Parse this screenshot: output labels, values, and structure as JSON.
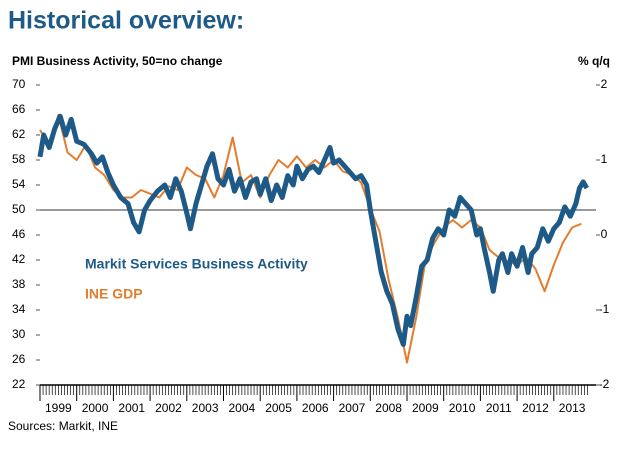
{
  "chart_data": {
    "type": "line",
    "title": "Historical overview:",
    "y_label": "PMI Business Activity, 50=no change",
    "y2_label": "% q/q",
    "source": "Sources: Markit, INE",
    "xlim": [
      1999,
      2014.15
    ],
    "xticks": [
      1999,
      2000,
      2001,
      2002,
      2003,
      2004,
      2005,
      2006,
      2007,
      2008,
      2009,
      2010,
      2011,
      2012,
      2013
    ],
    "ylim": [
      22,
      70
    ],
    "yticks": [
      22,
      26,
      30,
      34,
      38,
      42,
      46,
      50,
      54,
      58,
      62,
      66,
      70
    ],
    "y2lim": [
      -2,
      2
    ],
    "y2ticks": [
      -2,
      -1,
      0,
      1,
      2
    ],
    "reference_line": 50,
    "legend": "center-left",
    "series": [
      {
        "name": "Markit Services Business Activity",
        "color": "#1d5a87",
        "width": 5,
        "x": [
          1999.0,
          1999.1,
          1999.25,
          1999.4,
          1999.55,
          1999.7,
          1999.85,
          2000.0,
          2000.2,
          2000.4,
          2000.55,
          2000.7,
          2000.85,
          2001.0,
          2001.2,
          2001.4,
          2001.55,
          2001.7,
          2001.85,
          2002.0,
          2002.2,
          2002.4,
          2002.55,
          2002.7,
          2002.85,
          2003.0,
          2003.1,
          2003.25,
          2003.4,
          2003.55,
          2003.7,
          2003.85,
          2004.0,
          2004.15,
          2004.3,
          2004.45,
          2004.6,
          2004.75,
          2004.9,
          2005.0,
          2005.15,
          2005.3,
          2005.45,
          2005.6,
          2005.75,
          2005.9,
          2006.0,
          2006.15,
          2006.3,
          2006.45,
          2006.6,
          2006.75,
          2006.9,
          2007.0,
          2007.15,
          2007.3,
          2007.45,
          2007.6,
          2007.75,
          2007.9,
          2008.0,
          2008.15,
          2008.3,
          2008.45,
          2008.6,
          2008.75,
          2008.9,
          2009.0,
          2009.1,
          2009.25,
          2009.4,
          2009.55,
          2009.7,
          2009.85,
          2010.0,
          2010.15,
          2010.3,
          2010.45,
          2010.6,
          2010.75,
          2010.9,
          2011.0,
          2011.1,
          2011.25,
          2011.35,
          2011.5,
          2011.6,
          2011.75,
          2011.85,
          2012.0,
          2012.15,
          2012.3,
          2012.4,
          2012.55,
          2012.7,
          2012.85,
          2013.0,
          2013.15,
          2013.3,
          2013.45,
          2013.6,
          2013.7,
          2013.8,
          2013.9
        ],
        "values": [
          58.5,
          62,
          60,
          63,
          65,
          62,
          64.5,
          61,
          60.5,
          59,
          57.5,
          58.5,
          56,
          54,
          52,
          51,
          48,
          46.5,
          50,
          51.5,
          53,
          54,
          52,
          55,
          53,
          49.5,
          47,
          51,
          54,
          57,
          59,
          55,
          54,
          56.5,
          53,
          55,
          52,
          54.5,
          55,
          52.5,
          55,
          51.5,
          54,
          52,
          55.5,
          54,
          57,
          55,
          56.5,
          57,
          56,
          58,
          60,
          57.5,
          58,
          57,
          56,
          55,
          55.5,
          54,
          50,
          45,
          40,
          37,
          35,
          31,
          28.5,
          33,
          31.5,
          36,
          41,
          42,
          45.5,
          47,
          46,
          50,
          49,
          52,
          51,
          50,
          46,
          47,
          44,
          40,
          37,
          42,
          43,
          40,
          43,
          41,
          44,
          40,
          43,
          44,
          47,
          45,
          47,
          48,
          50.5,
          49,
          51,
          53.5,
          54.5,
          53.5
        ]
      },
      {
        "name": "INE GDP",
        "color": "#e37d2e",
        "width": 2,
        "axis": "y2",
        "x": [
          1999.0,
          1999.25,
          1999.5,
          1999.75,
          2000.0,
          2000.25,
          2000.5,
          2000.75,
          2001.0,
          2001.25,
          2001.5,
          2001.75,
          2002.0,
          2002.25,
          2002.5,
          2002.75,
          2003.0,
          2003.25,
          2003.5,
          2003.75,
          2004.0,
          2004.25,
          2004.5,
          2004.75,
          2005.0,
          2005.25,
          2005.5,
          2005.75,
          2006.0,
          2006.25,
          2006.5,
          2006.75,
          2007.0,
          2007.25,
          2007.5,
          2007.75,
          2008.0,
          2008.25,
          2008.5,
          2008.75,
          2009.0,
          2009.25,
          2009.5,
          2009.75,
          2010.0,
          2010.25,
          2010.5,
          2010.75,
          2011.0,
          2011.25,
          2011.5,
          2011.75,
          2012.0,
          2012.25,
          2012.5,
          2012.75,
          2013.0,
          2013.25,
          2013.5,
          2013.75
        ],
        "values": [
          1.4,
          1.2,
          1.6,
          1.1,
          1.0,
          1.2,
          0.9,
          0.8,
          0.6,
          0.5,
          0.5,
          0.6,
          0.55,
          0.5,
          0.65,
          0.6,
          0.9,
          0.8,
          0.75,
          0.5,
          0.8,
          1.3,
          0.7,
          0.8,
          0.5,
          0.8,
          1.0,
          0.9,
          1.05,
          0.9,
          1.0,
          0.9,
          1.0,
          0.85,
          0.8,
          0.7,
          0.35,
          0.05,
          -0.6,
          -1.1,
          -1.7,
          -1.1,
          -0.35,
          -0.1,
          0.1,
          0.2,
          0.1,
          0.2,
          0.1,
          -0.2,
          -0.3,
          -0.35,
          -0.4,
          -0.3,
          -0.45,
          -0.75,
          -0.4,
          -0.1,
          0.1,
          0.15
        ]
      }
    ]
  }
}
